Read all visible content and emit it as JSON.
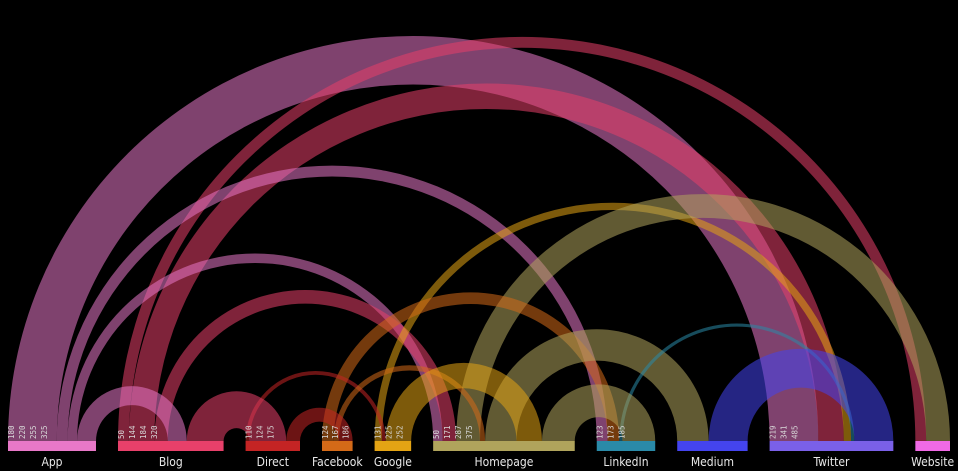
{
  "diagram": {
    "type": "arc-diagram",
    "nodes": [
      {
        "id": "app",
        "name": "App",
        "color": "#e878c8",
        "ticks": [
          "180",
          "220",
          "255",
          "325"
        ]
      },
      {
        "id": "blog",
        "name": "Blog",
        "color": "#e8406a",
        "ticks": [
          "50",
          "144",
          "184",
          "320"
        ]
      },
      {
        "id": "direct",
        "name": "Direct",
        "color": "#c42424",
        "ticks": [
          "110",
          "124",
          "175"
        ]
      },
      {
        "id": "facebook",
        "name": "Facebook",
        "color": "#d46a18",
        "ticks": [
          "124",
          "167",
          "186"
        ]
      },
      {
        "id": "google",
        "name": "Google",
        "color": "#e4a414",
        "ticks": [
          "131",
          "225",
          "252"
        ]
      },
      {
        "id": "homepage",
        "name": "Homepage",
        "color": "#b0a45c",
        "ticks": [
          "50",
          "171",
          "287",
          "375"
        ]
      },
      {
        "id": "linkedin",
        "name": "LinkedIn",
        "color": "#2a8aa8",
        "ticks": [
          "123",
          "173",
          "185"
        ]
      },
      {
        "id": "medium",
        "name": "Medium",
        "color": "#4444ee",
        "ticks": []
      },
      {
        "id": "twitter",
        "name": "Twitter",
        "color": "#7a60e8",
        "ticks": [
          "219",
          "341",
          "485"
        ]
      },
      {
        "id": "website",
        "name": "Website",
        "color": "#f06ae6",
        "ticks": []
      }
    ],
    "links": [
      {
        "source": "app",
        "target": "twitter",
        "value": 180
      },
      {
        "source": "app",
        "target": "linkedin",
        "value": 40
      },
      {
        "source": "app",
        "target": "homepage",
        "value": 35
      },
      {
        "source": "app",
        "target": "blog",
        "value": 70
      },
      {
        "source": "blog",
        "target": "homepage",
        "value": 50
      },
      {
        "source": "blog",
        "target": "twitter",
        "value": 94
      },
      {
        "source": "blog",
        "target": "website",
        "value": 40
      },
      {
        "source": "blog",
        "target": "direct",
        "value": 136
      },
      {
        "source": "direct",
        "target": "google",
        "value": 14
      },
      {
        "source": "direct",
        "target": "facebook",
        "value": 51
      },
      {
        "source": "facebook",
        "target": "linkedin",
        "value": 43
      },
      {
        "source": "facebook",
        "target": "homepage",
        "value": 19
      },
      {
        "source": "google",
        "target": "homepage",
        "value": 94
      },
      {
        "source": "google",
        "target": "twitter",
        "value": 27
      },
      {
        "source": "homepage",
        "target": "linkedin",
        "value": 121
      },
      {
        "source": "homepage",
        "target": "medium",
        "value": 116
      },
      {
        "source": "homepage",
        "target": "website",
        "value": 88
      },
      {
        "source": "linkedin",
        "target": "twitter",
        "value": 12
      },
      {
        "source": "medium",
        "target": "twitter",
        "value": 144
      }
    ]
  }
}
